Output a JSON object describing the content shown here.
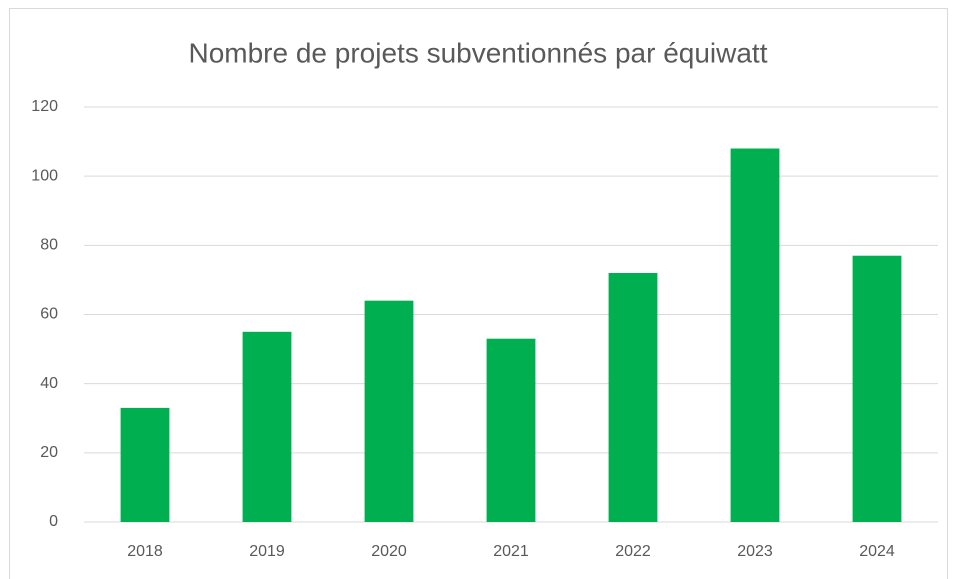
{
  "chart_data": {
    "type": "bar",
    "title": "Nombre de projets subventionnés par équiwatt",
    "categories": [
      "2018",
      "2019",
      "2020",
      "2021",
      "2022",
      "2023",
      "2024"
    ],
    "values": [
      33,
      55,
      64,
      53,
      72,
      108,
      77
    ],
    "color": "#00b050",
    "ylim": [
      0,
      120
    ],
    "yticks": [
      0,
      20,
      40,
      60,
      80,
      100,
      120
    ],
    "grid": true
  }
}
